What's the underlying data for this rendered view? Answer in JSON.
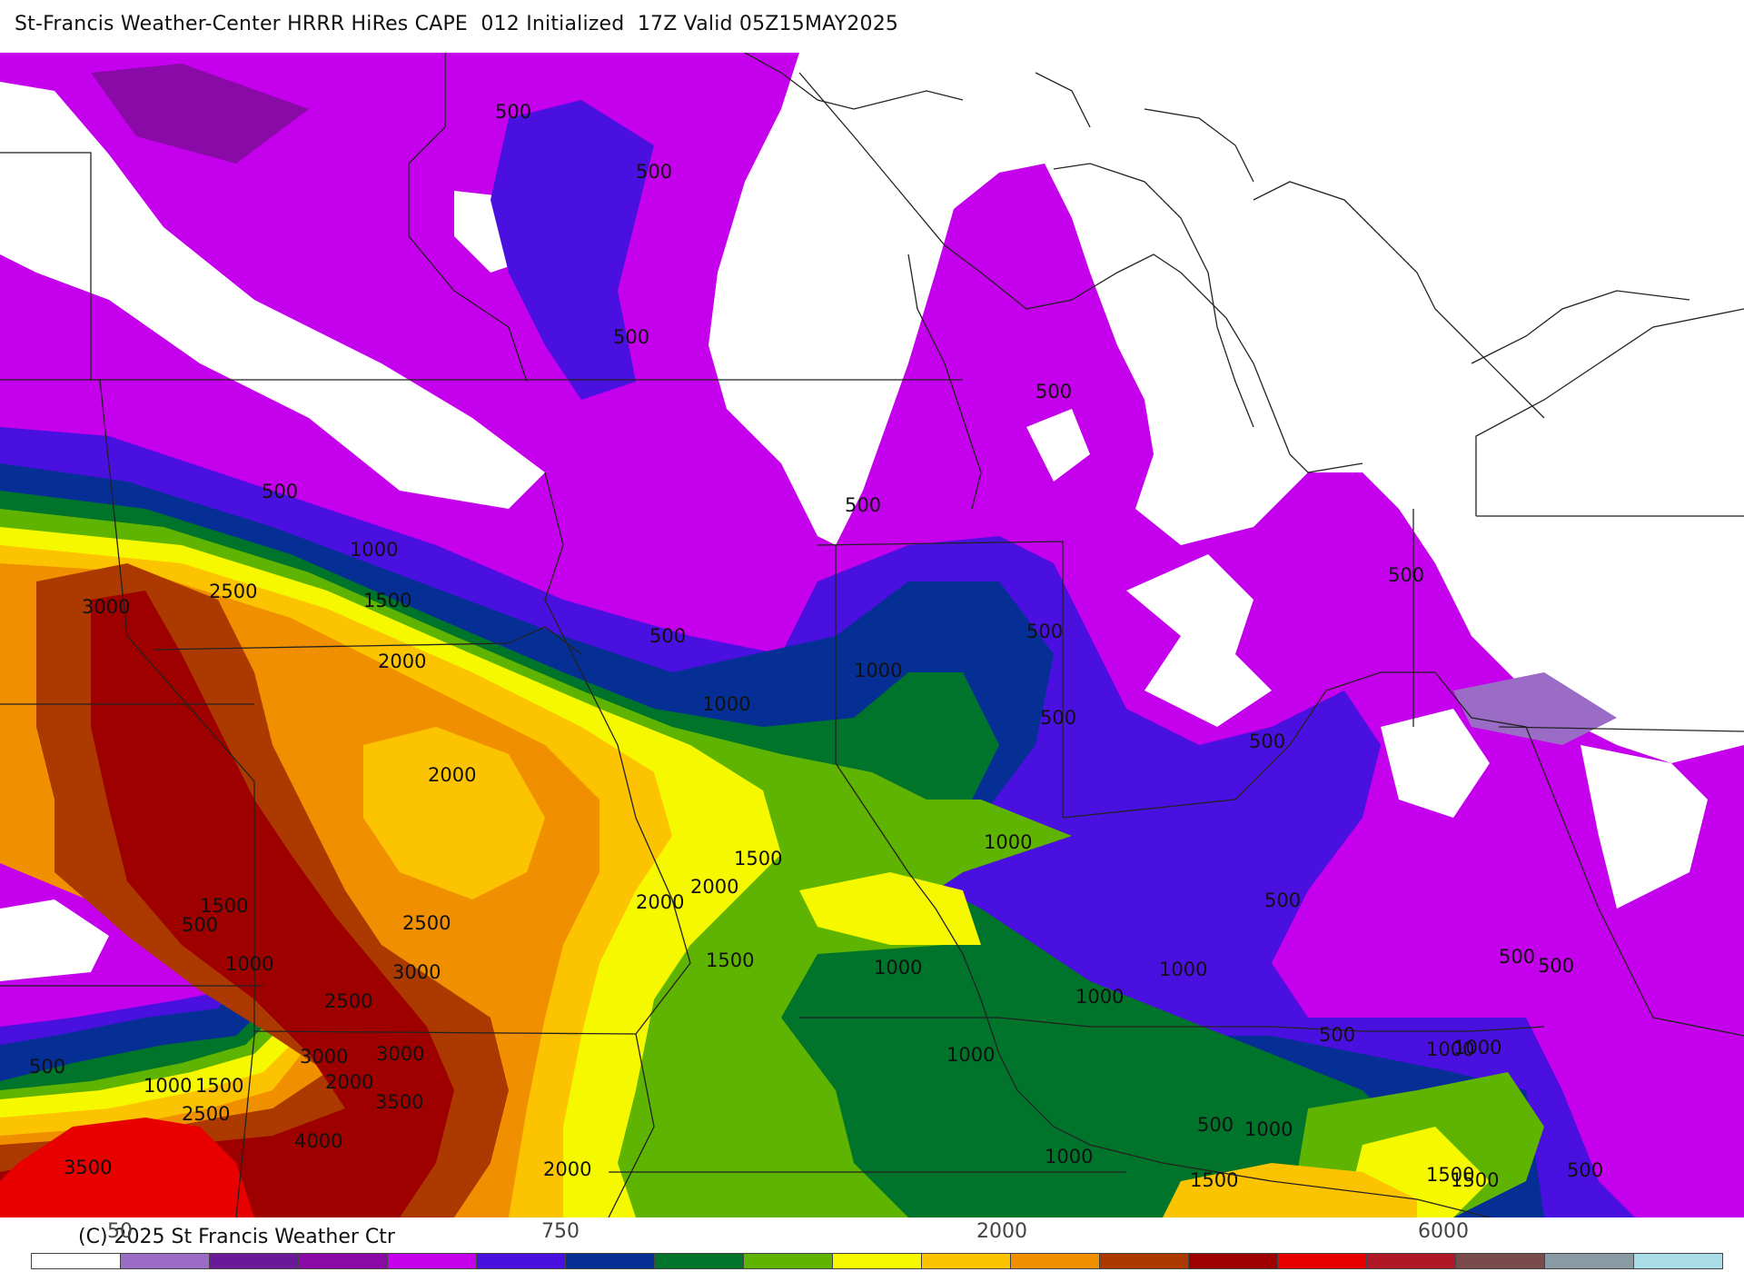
{
  "header": {
    "title": "St-Francis Weather-Center HRRR HiRes CAPE  012 Initialized  17Z Valid 05Z15MAY2025"
  },
  "colors": {
    "c0": "#ffffff",
    "c100": "#9a6cc6",
    "c250": "#6a1a98",
    "c500": "#8a0aa8",
    "c750": "#c400ec",
    "c1000": "#4a10e0",
    "c1250": "#062f96",
    "c1500": "#00742a",
    "c1750": "#5eb400",
    "c2000": "#f6f800",
    "c2250": "#fcc400",
    "c2500": "#f09000",
    "c3000": "#ac3a00",
    "c3500": "#9e0000",
    "c4000": "#e80000"
  },
  "contour_labels": [
    "500",
    "500",
    "500",
    "500",
    "500",
    "500",
    "500",
    "500",
    "500",
    "500",
    "500",
    "500",
    "500",
    "500",
    "500",
    "500",
    "500",
    "500",
    "500",
    "1000",
    "1000",
    "1000",
    "1000",
    "1000",
    "1000",
    "1000",
    "1000",
    "1000",
    "1000",
    "1000",
    "1000",
    "1000",
    "1000",
    "1500",
    "1500",
    "1500",
    "1500",
    "1500",
    "1500",
    "1500",
    "1500",
    "2000",
    "2000",
    "2000",
    "2000",
    "2000",
    "2000",
    "2500",
    "2500",
    "2500",
    "2500",
    "3000",
    "3000",
    "3000",
    "3000",
    "3500",
    "3500",
    "4000"
  ],
  "legend": {
    "copyright": "(C) 2025 St Francis Weather Ctr",
    "ticks": [
      "50",
      "750",
      "2000",
      "6000"
    ],
    "colors": [
      "#ffffff",
      "#9a6cc6",
      "#6a1a98",
      "#8a0aa8",
      "#c400ec",
      "#4a10e0",
      "#062f96",
      "#00742a",
      "#5eb400",
      "#f6f800",
      "#fcc400",
      "#f09000",
      "#ac3a00",
      "#9e0000",
      "#e80000",
      "#b01828",
      "#7a4a4a",
      "#8a9aa4",
      "#a8dce6"
    ]
  }
}
